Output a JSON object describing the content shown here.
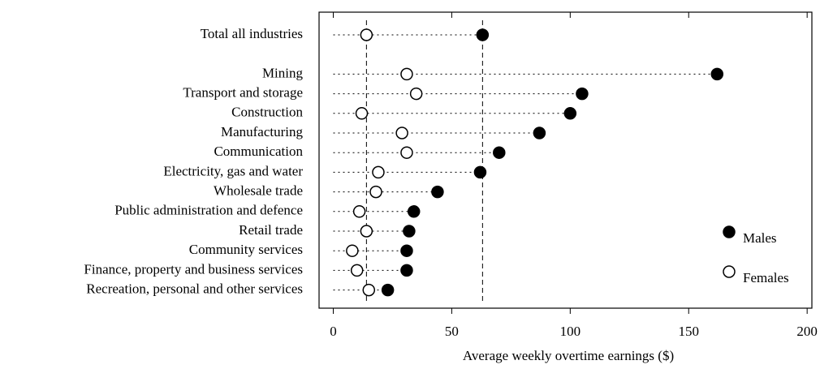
{
  "chart_data": {
    "type": "dot",
    "x_label": "Average weekly overtime earnings ($)",
    "categories": [
      "Total all industries",
      "Mining",
      "Transport and storage",
      "Construction",
      "Manufacturing",
      "Communication",
      "Electricity, gas and water",
      "Wholesale trade",
      "Public administration and defence",
      "Retail trade",
      "Community services",
      "Finance, property and business services",
      "Recreation, personal and other services"
    ],
    "series": [
      {
        "name": "Males",
        "color": "#000000",
        "fill": "#000000",
        "values": [
          63,
          162,
          105,
          100,
          87,
          70,
          62,
          44,
          34,
          32,
          31,
          31,
          23
        ]
      },
      {
        "name": "Females",
        "color": "#000000",
        "fill": "#ffffff",
        "values": [
          14,
          31,
          35,
          12,
          29,
          31,
          19,
          18,
          11,
          14,
          8,
          10,
          15
        ]
      }
    ],
    "xlim": [
      -6,
      202
    ],
    "xticks": [
      0,
      50,
      100,
      150,
      200
    ],
    "legend": "right"
  }
}
